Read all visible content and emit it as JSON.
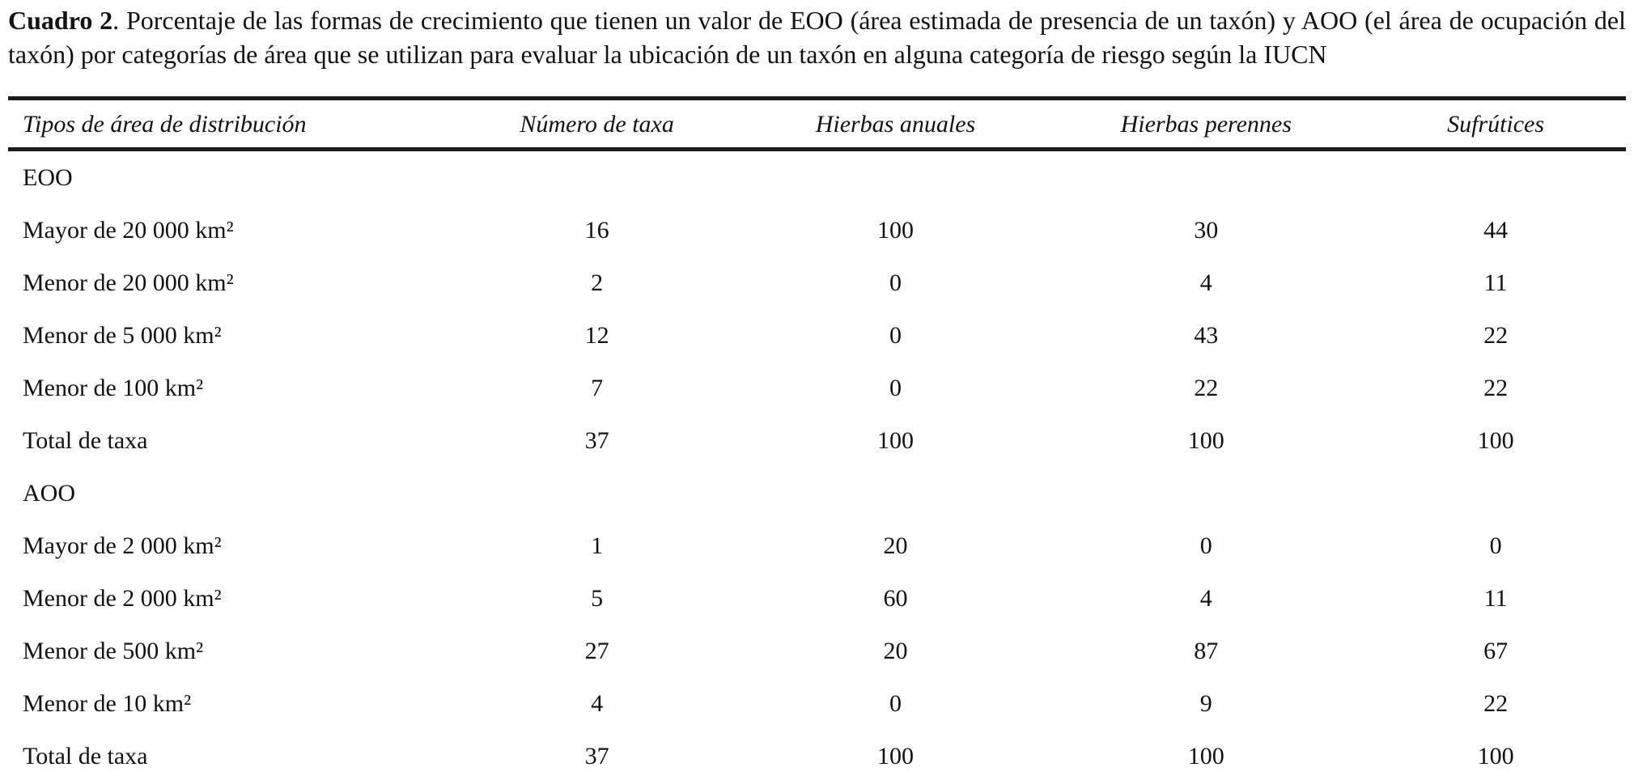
{
  "caption": {
    "label": "Cuadro 2",
    "text": ". Porcentaje de las formas de crecimiento que tienen un valor de EOO (área estimada de presencia de un taxón) y AOO (el área de ocupación del taxón) por categorías de área que se utilizan para evaluar la ubicación de un taxón en alguna categoría de riesgo según la IUCN"
  },
  "table": {
    "columns": [
      "Tipos de área de distribución",
      "Número de taxa",
      "Hierbas anuales",
      "Hierbas perennes",
      "Sufrútices"
    ],
    "sections": [
      {
        "name": "EOO",
        "rows": [
          {
            "label": "Mayor de 20 000 km²",
            "values": [
              "16",
              "100",
              "30",
              "44"
            ]
          },
          {
            "label": "Menor de 20 000 km²",
            "values": [
              "2",
              "0",
              "4",
              "11"
            ]
          },
          {
            "label": "Menor de 5 000 km²",
            "values": [
              "12",
              "0",
              "43",
              "22"
            ]
          },
          {
            "label": "Menor de 100 km²",
            "values": [
              "7",
              "0",
              "22",
              "22"
            ]
          },
          {
            "label": "Total de taxa",
            "values": [
              "37",
              "100",
              "100",
              "100"
            ]
          }
        ]
      },
      {
        "name": "AOO",
        "rows": [
          {
            "label": "Mayor de 2 000 km²",
            "values": [
              "1",
              "20",
              "0",
              "0"
            ]
          },
          {
            "label": "Menor de 2 000 km²",
            "values": [
              "5",
              "60",
              "4",
              "11"
            ]
          },
          {
            "label": "Menor de 500 km²",
            "values": [
              "27",
              "20",
              "87",
              "67"
            ]
          },
          {
            "label": "Menor de 10 km²",
            "values": [
              "4",
              "0",
              "9",
              "22"
            ]
          },
          {
            "label": "Total de taxa",
            "values": [
              "37",
              "100",
              "100",
              "100"
            ]
          }
        ]
      }
    ]
  }
}
